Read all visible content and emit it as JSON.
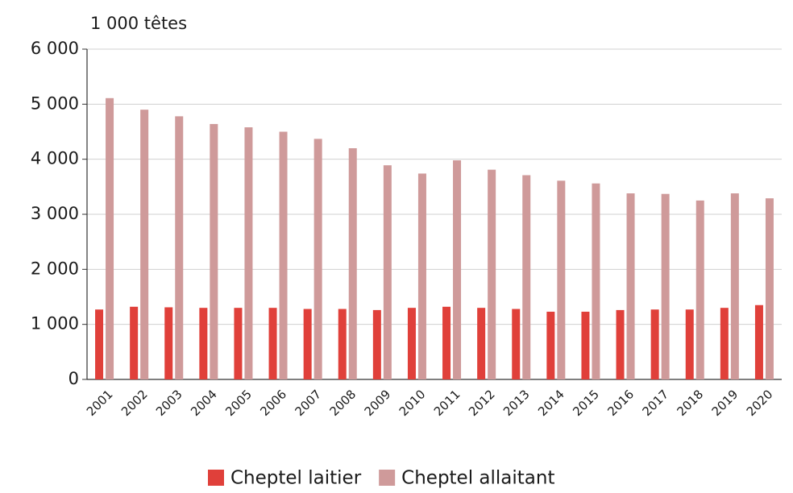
{
  "chart_data": {
    "type": "bar",
    "y_axis_label": "1 000 têtes",
    "categories": [
      "2001",
      "2002",
      "2003",
      "2004",
      "2005",
      "2006",
      "2007",
      "2008",
      "2009",
      "2010",
      "2011",
      "2012",
      "2013",
      "2014",
      "2015",
      "2016",
      "2017",
      "2018",
      "2019",
      "2020"
    ],
    "series": [
      {
        "name": "Cheptel laitier",
        "color": "#e0403a",
        "values": [
          1270,
          1320,
          1310,
          1300,
          1300,
          1300,
          1280,
          1280,
          1260,
          1300,
          1320,
          1300,
          1280,
          1230,
          1230,
          1260,
          1270,
          1270,
          1300,
          1350
        ]
      },
      {
        "name": "Cheptel allaitant",
        "color": "#cf9a9a",
        "values": [
          5110,
          4900,
          4780,
          4640,
          4580,
          4500,
          4370,
          4200,
          3890,
          3740,
          3980,
          3810,
          3710,
          3610,
          3560,
          3380,
          3370,
          3250,
          3380,
          3290
        ]
      }
    ],
    "ylim": [
      0,
      6000
    ],
    "yticks": [
      0,
      {
        "value": 1000,
        "label": "1 000"
      },
      {
        "value": 2000,
        "label": "2 000"
      },
      {
        "value": 3000,
        "label": "3 000"
      },
      {
        "value": 4000,
        "label": "4 000"
      },
      {
        "value": 5000,
        "label": "5 000"
      },
      {
        "value": 6000,
        "label": "6 000"
      }
    ],
    "grid": true,
    "legend": "bottom"
  }
}
